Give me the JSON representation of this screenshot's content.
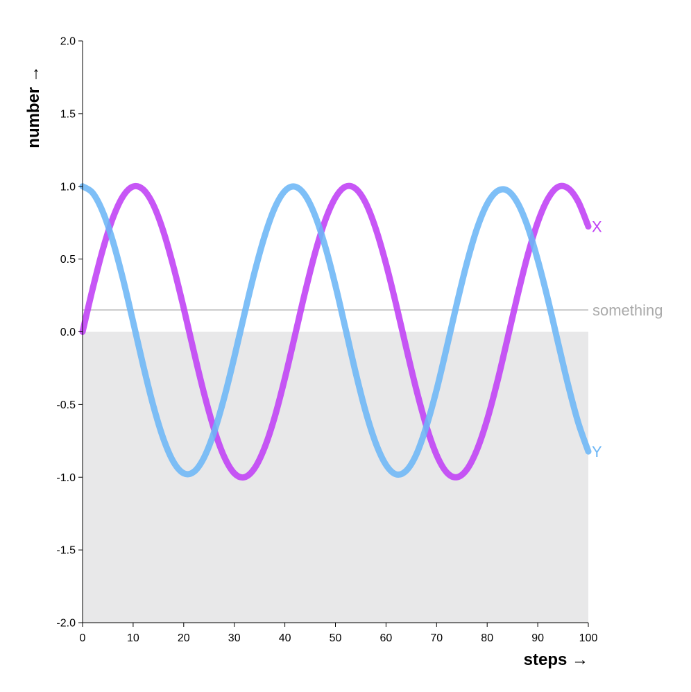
{
  "chart_data": {
    "type": "line",
    "xlabel": "steps →",
    "ylabel": "number →",
    "xlim": [
      0,
      100
    ],
    "ylim": [
      -2.0,
      2.0
    ],
    "x_ticks": [
      "0",
      "10",
      "20",
      "30",
      "40",
      "50",
      "60",
      "70",
      "80",
      "90",
      "100"
    ],
    "y_ticks": [
      "-2.0",
      "-1.5",
      "-1.0",
      "-0.5",
      "0.0",
      "0.5",
      "1.0",
      "1.5",
      "2.0"
    ],
    "grid": false,
    "shaded_region": {
      "y_from": -2.0,
      "y_to": 0.0,
      "color": "#e8e8e9"
    },
    "rule": {
      "label": "something",
      "y": 0.15,
      "color": "#cccccc",
      "label_color": "#aaaaaa"
    },
    "series": [
      {
        "name": "X",
        "color": "#bf3ff5",
        "x": [
          0,
          2,
          4,
          6,
          8,
          10,
          12,
          14,
          16,
          18,
          20,
          22,
          24,
          26,
          28,
          30,
          32,
          34,
          36,
          38,
          40,
          42,
          44,
          46,
          48,
          50,
          52,
          54,
          56,
          58,
          60,
          62,
          64,
          66,
          68,
          70,
          72,
          74,
          76,
          78,
          80,
          82,
          84,
          86,
          88,
          90,
          92,
          94,
          96,
          98,
          100
        ],
        "values": [
          0,
          0.296,
          0.565,
          0.783,
          0.932,
          0.999,
          0.978,
          0.872,
          0.688,
          0.444,
          0.163,
          -0.136,
          -0.421,
          -0.669,
          -0.859,
          -0.973,
          -1,
          -0.939,
          -0.796,
          -0.585,
          -0.32,
          -0.025,
          0.273,
          0.546,
          0.768,
          0.923,
          0.998,
          0.984,
          0.885,
          0.706,
          0.467,
          0.187,
          -0.111,
          -0.398,
          -0.651,
          -0.847,
          -0.967,
          -1,
          -0.946,
          -0.81,
          -0.604,
          -0.344,
          -0.05,
          0.249,
          0.525,
          0.753,
          0.914,
          0.996,
          0.987,
          0.895,
          0.724
        ]
      },
      {
        "name": "Y",
        "color": "#6cb6f6",
        "x": [
          0,
          2,
          4,
          6,
          8,
          10,
          12,
          14,
          16,
          18,
          20,
          22,
          24,
          26,
          28,
          30,
          32,
          34,
          36,
          38,
          40,
          42,
          44,
          46,
          48,
          50,
          52,
          54,
          56,
          58,
          60,
          62,
          64,
          66,
          68,
          70,
          72,
          74,
          76,
          78,
          80,
          82,
          84,
          86,
          88,
          90,
          92,
          94,
          96,
          98,
          100
        ],
        "values": [
          1,
          0.955,
          0.825,
          0.622,
          0.362,
          0.068,
          -0.233,
          -0.51,
          -0.737,
          -0.896,
          -0.973,
          -0.963,
          -0.866,
          -0.691,
          -0.454,
          -0.175,
          0.122,
          0.408,
          0.658,
          0.852,
          0.968,
          0.998,
          0.939,
          0.797,
          0.584,
          0.318,
          0.02,
          -0.281,
          -0.552,
          -0.768,
          -0.915,
          -0.98,
          -0.955,
          -0.843,
          -0.648,
          -0.399,
          -0.108,
          0.193,
          0.475,
          0.711,
          0.879,
          0.967,
          0.971,
          0.887,
          0.724,
          0.494,
          0.224,
          -0.073,
          -0.365,
          -0.624,
          -0.823
        ]
      }
    ]
  }
}
